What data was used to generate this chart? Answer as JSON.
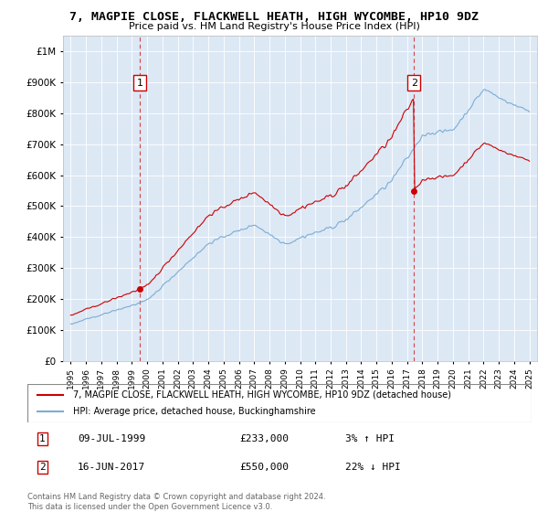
{
  "title": "7, MAGPIE CLOSE, FLACKWELL HEATH, HIGH WYCOMBE, HP10 9DZ",
  "subtitle": "Price paid vs. HM Land Registry's House Price Index (HPI)",
  "bg_color": "#dde8f5",
  "red_color": "#cc0000",
  "blue_color": "#7aadd4",
  "sale1_year": 1999.53,
  "sale1_price": 233000,
  "sale2_year": 2017.45,
  "sale2_price": 550000,
  "legend_line1": "7, MAGPIE CLOSE, FLACKWELL HEATH, HIGH WYCOMBE, HP10 9DZ (detached house)",
  "legend_line2": "HPI: Average price, detached house, Buckinghamshire",
  "row1_num": "1",
  "row1_date": "09-JUL-1999",
  "row1_price": "£233,000",
  "row1_pct": "3% ↑ HPI",
  "row2_num": "2",
  "row2_date": "16-JUN-2017",
  "row2_price": "£550,000",
  "row2_pct": "22% ↓ HPI",
  "footer": "Contains HM Land Registry data © Crown copyright and database right 2024.\nThis data is licensed under the Open Government Licence v3.0.",
  "ylim_min": 0,
  "ylim_max": 1050000,
  "xlim_min": 1994.5,
  "xlim_max": 2025.5
}
